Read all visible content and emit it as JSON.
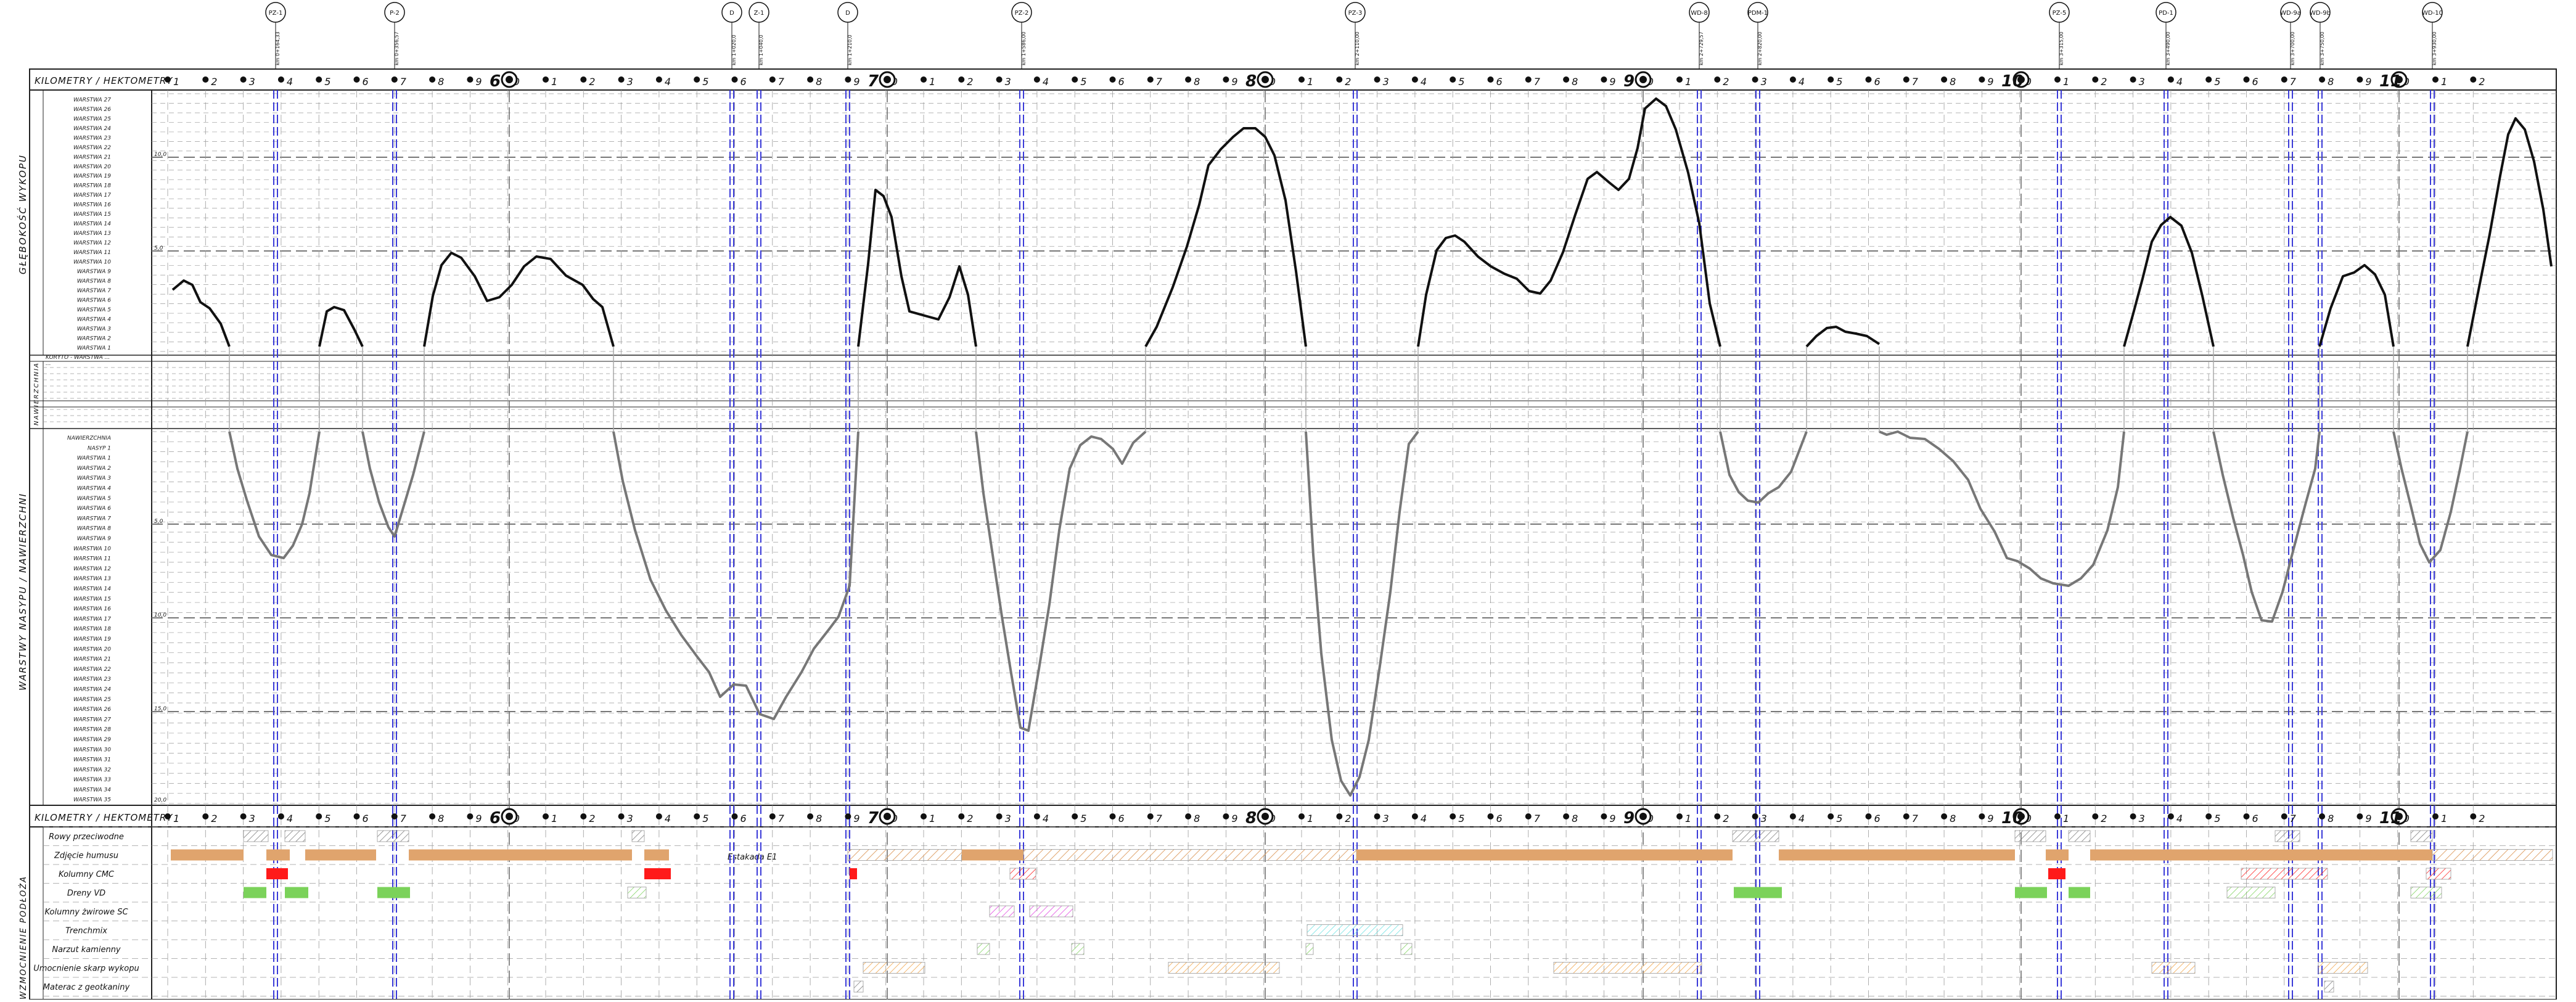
{
  "headers": {
    "km_row_label": "KILOMETRY / HEKTOMETRY",
    "top_section_title": "GŁĘBOKOŚĆ WYKOPU",
    "middle_section_title": "NAWIERZCHNIA",
    "bottom_section_title": "WARSTWY NASYPU / NAWIERZCHNI",
    "lower_section_title": "WZMOCNIENIE PODŁOŻA",
    "estakada_label": "Estakada E1"
  },
  "km_labels": [
    "6",
    "7",
    "8",
    "9",
    "10",
    "11"
  ],
  "hectometer_labels": [
    "1",
    "2",
    "3",
    "4",
    "5",
    "6",
    "7",
    "8",
    "9",
    "0",
    "1",
    "2",
    "3",
    "4",
    "5",
    "6",
    "7",
    "8",
    "9",
    "0",
    "1",
    "2",
    "3",
    "4",
    "5",
    "6",
    "7",
    "8",
    "9",
    "0",
    "1",
    "2",
    "3",
    "4",
    "5",
    "6",
    "7",
    "8",
    "9",
    "0",
    "1",
    "2",
    "3",
    "4",
    "5",
    "6",
    "7",
    "8",
    "9",
    "0",
    "1",
    "2",
    "3",
    "4",
    "5",
    "6",
    "7",
    "8",
    "9",
    "0",
    "1",
    "2"
  ],
  "top_markers": [
    {
      "code": "PZ-1",
      "station": "km 0+164,33"
    },
    {
      "code": "P-2",
      "station": "km 0+356,57"
    },
    {
      "code": "D",
      "station": "km 1+020,0"
    },
    {
      "code": "Z-1",
      "station": "km 1+040,0"
    },
    {
      "code": "D",
      "station": "km 1+210,0"
    },
    {
      "code": "PZ-2",
      "station": "km 1+586,00"
    },
    {
      "code": "PZ-3",
      "station": "km 2+110,00"
    },
    {
      "code": "WD-8",
      "station": "km 2+729,57"
    },
    {
      "code": "PDM-1",
      "station": "km 2+820,00"
    },
    {
      "code": "PZ-5",
      "station": "km 3+315,00"
    },
    {
      "code": "PD-1",
      "station": "km 3+490,00"
    },
    {
      "code": "WD-9a",
      "station": "km 3+700,00"
    },
    {
      "code": "WD-9b",
      "station": "km 3+750,00"
    },
    {
      "code": "WD-10",
      "station": "km 3+930,00"
    }
  ],
  "top_row_labels": [
    "WARSTWA 27",
    "WARSTWA 26",
    "WARSTWA 25",
    "WARSTWA 24",
    "WARSTWA 23",
    "WARSTWA 22",
    "WARSTWA 21",
    "WARSTWA 20",
    "WARSTWA 19",
    "WARSTWA 18",
    "WARSTWA 17",
    "WARSTWA 16",
    "WARSTWA 15",
    "WARSTWA 14",
    "WARSTWA 13",
    "WARSTWA 12",
    "WARSTWA 11",
    "WARSTWA 10",
    "WARSTWA 9",
    "WARSTWA 8",
    "WARSTWA 7",
    "WARSTWA 6",
    "WARSTWA 5",
    "WARSTWA 4",
    "WARSTWA 3",
    "WARSTWA 2",
    "WARSTWA 1"
  ],
  "mid_row_labels": [
    "KORYTO - WARSTWA ...",
    "..."
  ],
  "bottom_row_labels": [
    "NAWIERZCHNIA",
    "NASYP 1",
    "WARSTWA 1",
    "WARSTWA 2",
    "WARSTWA 3",
    "WARSTWA 4",
    "WARSTWA 5",
    "WARSTWA 6",
    "WARSTWA 7",
    "WARSTWA 8",
    "WARSTWA 9",
    "WARSTWA 10",
    "WARSTWA 11",
    "WARSTWA 12",
    "WARSTWA 13",
    "WARSTWA 14",
    "WARSTWA 15",
    "WARSTWA 16",
    "WARSTWA 17",
    "WARSTWA 18",
    "WARSTWA 19",
    "WARSTWA 20",
    "WARSTWA 21",
    "WARSTWA 22",
    "WARSTWA 23",
    "WARSTWA 24",
    "WARSTWA 25",
    "WARSTWA 26",
    "WARSTWA 27",
    "WARSTWA 28",
    "WARSTWA 29",
    "WARSTWA 30",
    "WARSTWA 31",
    "WARSTWA 32",
    "WARSTWA 33",
    "WARSTWA 34",
    "WARSTWA 35"
  ],
  "depth_labels_top": [
    "10,0",
    "5,0"
  ],
  "depth_labels_bottom": [
    "5,0",
    "10,0",
    "15,0",
    "20,0"
  ],
  "treatment_rows": [
    "Rowy przeciwodne",
    "Zdjęcie humusu",
    "Kolumny CMC",
    "Dreny VD",
    "Kolumny żwirowe SC",
    "Trenchmix",
    "Narzut kamienny",
    "Umocnienie skarp wykopu",
    "Materac z geotkaniny"
  ],
  "colors": {
    "cut_line": "#111111",
    "fill_line": "#777777",
    "blue_marker": "#3a3ad8",
    "humus": "#e0a46d",
    "cmc": "#ff1a1a",
    "vd": "#7bd25a",
    "sc": "#e040e0",
    "trench": "#66e0e0",
    "slope": "#f0a040",
    "grid": "#9a9a9a"
  }
}
